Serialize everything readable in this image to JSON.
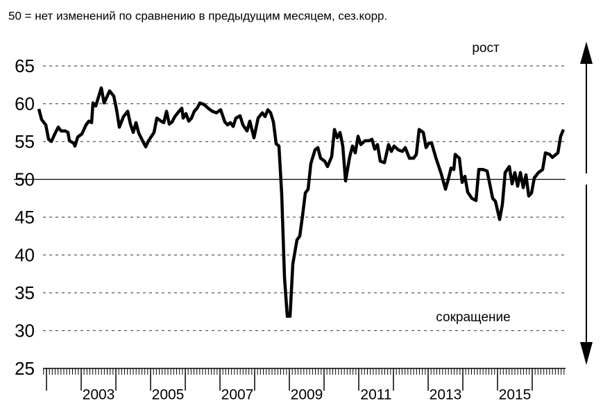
{
  "chart_data": {
    "type": "line",
    "subtitle": "50 = нет изменений по сравнению в предыдущим месяцем, сез.корр.",
    "annotations": [
      "рост",
      "сокращение"
    ],
    "ylim": [
      25,
      65
    ],
    "yticks": [
      25,
      30,
      35,
      40,
      45,
      50,
      55,
      60,
      65
    ],
    "xlim": [
      2001.78,
      2016.96
    ],
    "xticks": [
      {
        "value": 2003.5,
        "label": "2003"
      },
      {
        "value": 2005.5,
        "label": "2005"
      },
      {
        "value": 2007.5,
        "label": "2007"
      },
      {
        "value": 2009.5,
        "label": "2009"
      },
      {
        "value": 2011.5,
        "label": "2011"
      },
      {
        "value": 2013.5,
        "label": "2013"
      },
      {
        "value": 2015.5,
        "label": "2015"
      }
    ],
    "grid": true,
    "reference_line": 50,
    "series": [
      {
        "color": "#000000",
        "x": [
          2001.78,
          2001.86,
          2001.98,
          2002.06,
          2002.14,
          2002.26,
          2002.34,
          2002.42,
          2002.54,
          2002.62,
          2002.66,
          2002.78,
          2002.82,
          2002.9,
          2003.02,
          2003.14,
          2003.22,
          2003.3,
          2003.34,
          2003.42,
          2003.58,
          2003.66,
          2003.82,
          2003.94,
          2004.02,
          2004.1,
          2004.22,
          2004.34,
          2004.42,
          2004.5,
          2004.58,
          2004.66,
          2004.78,
          2004.86,
          2004.94,
          2005.1,
          2005.18,
          2005.3,
          2005.38,
          2005.46,
          2005.54,
          2005.62,
          2005.7,
          2005.82,
          2005.9,
          2005.94,
          2006.02,
          2006.1,
          2006.18,
          2006.26,
          2006.34,
          2006.42,
          2006.54,
          2006.66,
          2006.78,
          2006.9,
          2007.02,
          2007.14,
          2007.22,
          2007.3,
          2007.38,
          2007.46,
          2007.58,
          2007.66,
          2007.78,
          2007.86,
          2007.98,
          2008.1,
          2008.22,
          2008.3,
          2008.38,
          2008.46,
          2008.54,
          2008.62,
          2008.7,
          2008.78,
          2008.86,
          2008.94,
          2009.02,
          2009.1,
          2009.22,
          2009.3,
          2009.38,
          2009.46,
          2009.54,
          2009.62,
          2009.74,
          2009.82,
          2009.9,
          2010.02,
          2010.1,
          2010.22,
          2010.3,
          2010.38,
          2010.46,
          2010.54,
          2010.62,
          2010.74,
          2010.82,
          2010.9,
          2010.98,
          2011.06,
          2011.18,
          2011.3,
          2011.38,
          2011.46,
          2011.54,
          2011.62,
          2011.74,
          2011.86,
          2011.94,
          2012.02,
          2012.14,
          2012.26,
          2012.34,
          2012.46,
          2012.58,
          2012.66,
          2012.74,
          2012.86,
          2012.94,
          2013.02,
          2013.1,
          2013.22,
          2013.38,
          2013.5,
          2013.58,
          2013.66,
          2013.74,
          2013.78,
          2013.9,
          2013.98,
          2014.06,
          2014.14,
          2014.26,
          2014.38,
          2014.46,
          2014.58,
          2014.7,
          2014.78,
          2014.86,
          2014.94,
          2015.06,
          2015.14,
          2015.22,
          2015.34,
          2015.42,
          2015.5,
          2015.58,
          2015.66,
          2015.74,
          2015.82,
          2015.9,
          2015.98,
          2016.06,
          2016.18,
          2016.3,
          2016.38,
          2016.5,
          2016.58,
          2016.74,
          2016.82,
          2016.9
        ],
        "values": [
          59.3,
          57.9,
          57.2,
          55.3,
          55.0,
          56.2,
          56.9,
          56.4,
          56.4,
          56.2,
          55.1,
          54.8,
          54.4,
          55.6,
          56.0,
          57.2,
          57.7,
          57.5,
          60.1,
          59.7,
          62.1,
          60.1,
          61.7,
          61.0,
          59.2,
          56.9,
          58.3,
          59.0,
          57.3,
          56.2,
          57.5,
          56.1,
          55.0,
          54.3,
          55.1,
          56.2,
          58.1,
          57.7,
          57.5,
          59.0,
          57.3,
          57.6,
          58.3,
          59.0,
          59.4,
          58.1,
          58.7,
          57.7,
          58.1,
          59.0,
          59.4,
          60.1,
          59.9,
          59.4,
          59.0,
          58.8,
          59.2,
          57.6,
          57.2,
          57.5,
          57.0,
          58.1,
          58.4,
          57.2,
          56.4,
          57.7,
          55.5,
          58.1,
          58.8,
          58.3,
          59.2,
          58.8,
          57.6,
          54.7,
          54.4,
          48.0,
          37.0,
          31.9,
          31.9,
          38.8,
          42.0,
          42.5,
          45.2,
          48.2,
          48.7,
          52.1,
          53.9,
          54.2,
          52.8,
          52.4,
          51.7,
          53.0,
          56.6,
          55.5,
          56.2,
          54.4,
          49.8,
          53.0,
          54.4,
          53.5,
          55.7,
          54.6,
          55.1,
          55.1,
          55.3,
          54.0,
          54.6,
          52.4,
          52.2,
          54.6,
          53.7,
          54.4,
          53.9,
          53.7,
          54.2,
          52.8,
          52.8,
          53.3,
          56.6,
          56.2,
          54.2,
          54.8,
          54.8,
          52.9,
          50.7,
          48.7,
          50.0,
          51.5,
          51.3,
          53.3,
          52.8,
          49.6,
          50.4,
          48.3,
          47.5,
          47.2,
          51.3,
          51.3,
          51.1,
          49.3,
          47.5,
          47.1,
          44.7,
          46.7,
          50.9,
          51.7,
          49.4,
          50.9,
          49.1,
          50.9,
          48.9,
          50.6,
          47.8,
          48.2,
          50.2,
          50.9,
          51.3,
          53.5,
          53.3,
          52.9,
          53.5,
          55.7,
          56.6
        ]
      }
    ]
  }
}
